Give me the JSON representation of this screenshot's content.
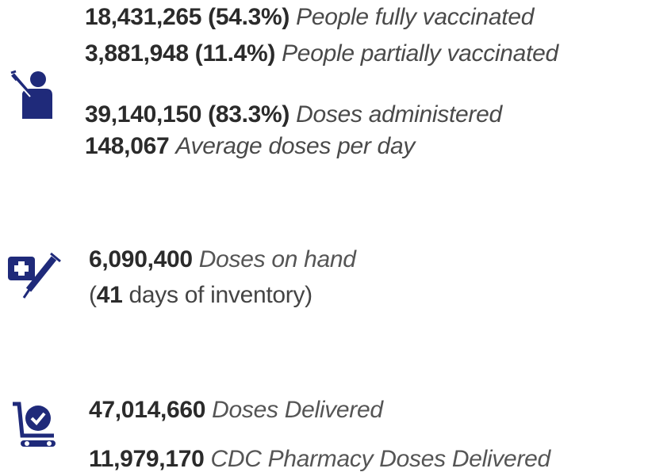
{
  "groups": [
    {
      "lines": [
        {
          "value": "18,431,265 (54.3%)",
          "label": "People fully vaccinated"
        },
        {
          "value": "3,881,948 (11.4%)",
          "label": "People partially vaccinated"
        },
        {
          "value": "39,140,150 (83.3%)",
          "label": "Doses administered"
        },
        {
          "value": "148,067",
          "label": "Average doses per day"
        }
      ]
    },
    {
      "lines": [
        {
          "value": "6,090,400",
          "label": "Doses on hand"
        },
        {
          "prefix": "(",
          "value": "41",
          "label": "days of inventory)"
        }
      ]
    },
    {
      "lines": [
        {
          "value": "47,014,660",
          "label": "Doses Delivered"
        },
        {
          "value": "11,979,170",
          "label": "CDC Pharmacy Doses Delivered"
        }
      ]
    }
  ]
}
